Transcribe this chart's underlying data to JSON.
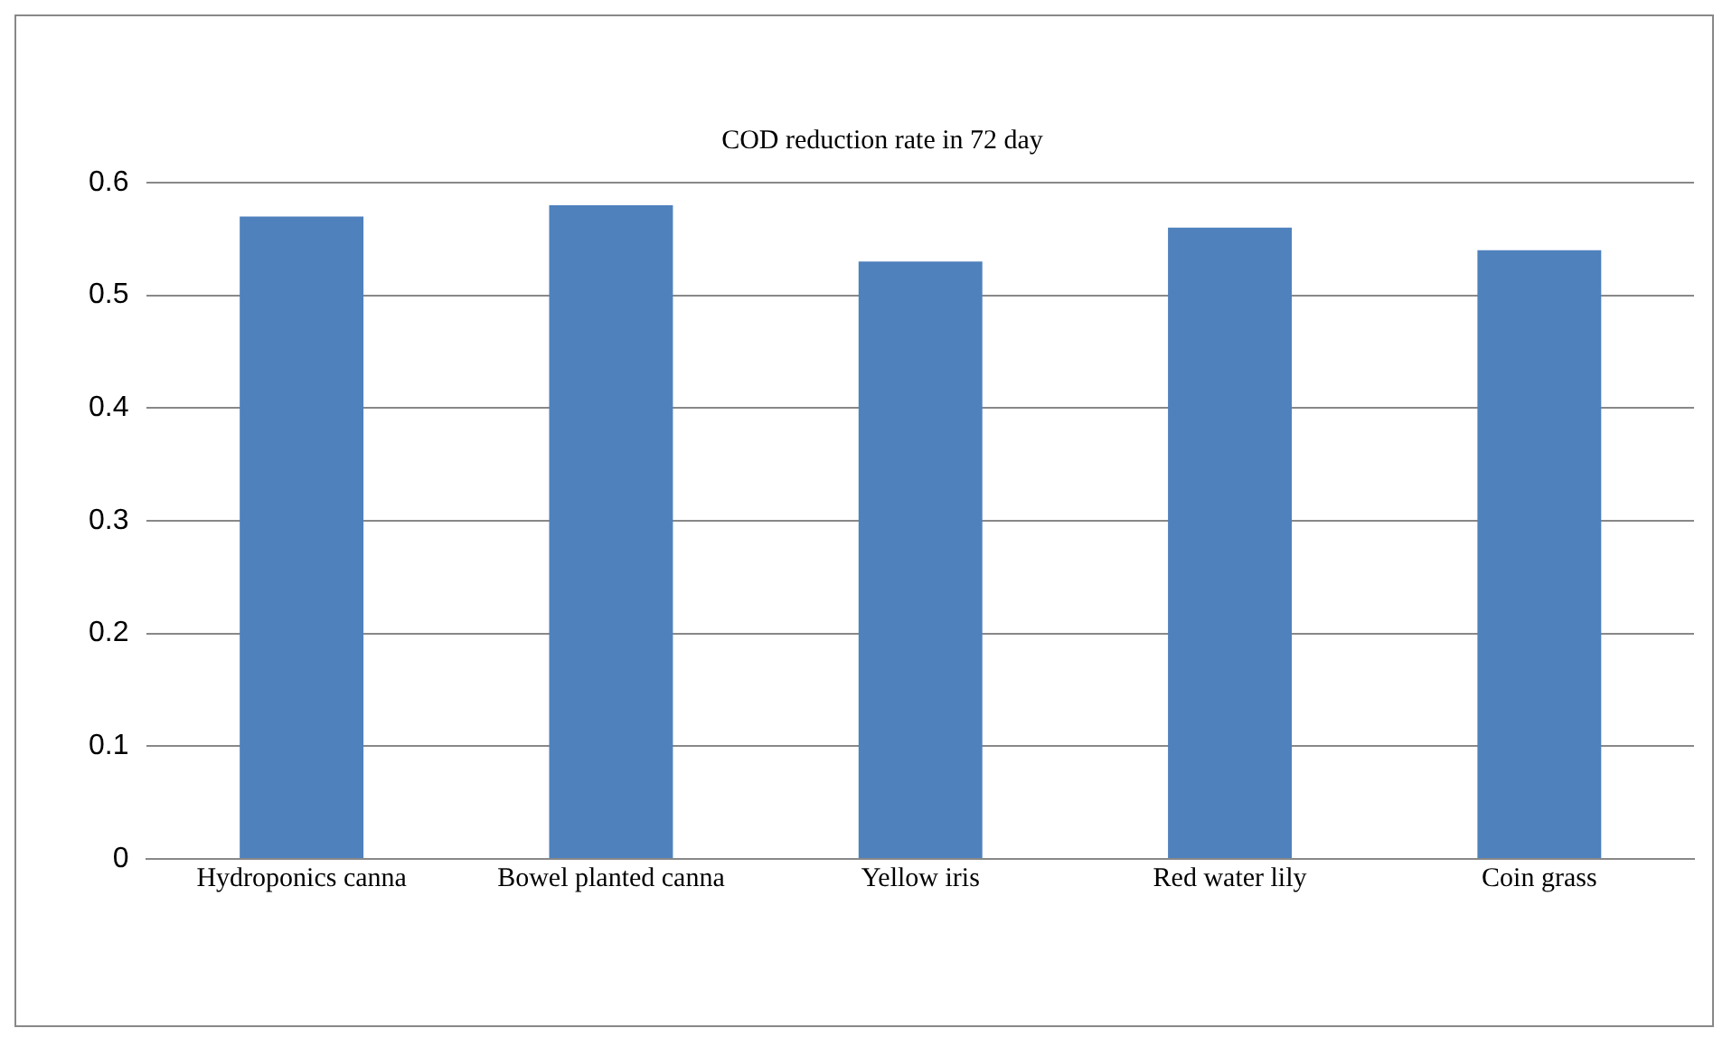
{
  "chart_data": {
    "type": "bar",
    "title": "COD reduction rate in 72 day",
    "categories": [
      "Hydroponics canna",
      "Bowel planted canna",
      "Yellow iris",
      "Red water lily",
      "Coin grass"
    ],
    "values": [
      0.57,
      0.58,
      0.53,
      0.56,
      0.54
    ],
    "color": "#4f81bd",
    "ylim": [
      0,
      0.6
    ],
    "yticks": [
      0,
      0.1,
      0.2,
      0.3,
      0.4,
      0.5,
      0.6
    ],
    "grid": "y",
    "legend": false
  }
}
